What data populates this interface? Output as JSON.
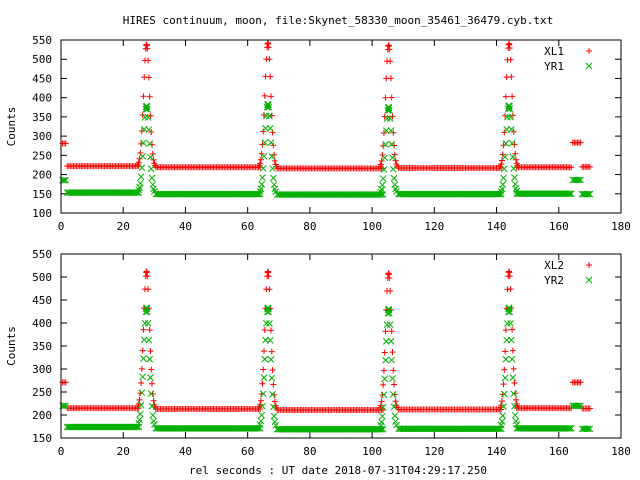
{
  "page": {
    "title": "HIRES continuum, moon, file:Skynet_58330_moon_35461_36479.cyb.txt",
    "xlabel": "rel seconds : UT date 2018-07-31T04:29:17.250"
  },
  "chart_data": [
    {
      "type": "scatter",
      "ylabel": "Counts",
      "xlim": [
        0,
        180
      ],
      "ylim": [
        100,
        550
      ],
      "xticks": [
        0,
        20,
        40,
        60,
        80,
        100,
        120,
        140,
        160,
        180
      ],
      "yticks": [
        100,
        150,
        200,
        250,
        300,
        350,
        400,
        450,
        500,
        550
      ],
      "legend_position": "top-right",
      "series": [
        {
          "name": "XL1",
          "color": "#ff0000",
          "marker": "plus",
          "baseline_segments": [
            [
              0.5,
              1.5,
              281
            ],
            [
              2,
              25,
              222
            ],
            [
              30.5,
              64,
              219
            ],
            [
              69.5,
              103.5,
              216
            ],
            [
              108.5,
              141.5,
              217
            ],
            [
              146.5,
              164,
              219
            ],
            [
              164.5,
              167,
              283
            ],
            [
              167.5,
              170,
              220
            ]
          ],
          "peaks": [
            {
              "x": 27.5,
              "y": 538
            },
            {
              "x": 66.5,
              "y": 542
            },
            {
              "x": 105.3,
              "y": 536
            },
            {
              "x": 144,
              "y": 540
            }
          ]
        },
        {
          "name": "YR1",
          "color": "#00b000",
          "marker": "cross",
          "baseline_segments": [
            [
              0.5,
              1.5,
              185
            ],
            [
              2,
              25,
              153
            ],
            [
              30.5,
              64,
              149
            ],
            [
              69.5,
              103.5,
              148
            ],
            [
              108.5,
              141.5,
              149
            ],
            [
              146.5,
              164,
              150
            ],
            [
              164.5,
              167,
              186
            ],
            [
              167.5,
              170,
              149
            ]
          ],
          "peaks": [
            {
              "x": 27.5,
              "y": 378
            },
            {
              "x": 66.5,
              "y": 383
            },
            {
              "x": 105.3,
              "y": 375
            },
            {
              "x": 144,
              "y": 379
            }
          ]
        }
      ]
    },
    {
      "type": "scatter",
      "ylabel": "Counts",
      "xlim": [
        0,
        180
      ],
      "ylim": [
        150,
        550
      ],
      "xticks": [
        0,
        20,
        40,
        60,
        80,
        100,
        120,
        140,
        160,
        180
      ],
      "yticks": [
        150,
        200,
        250,
        300,
        350,
        400,
        450,
        500,
        550
      ],
      "legend_position": "top-right",
      "series": [
        {
          "name": "XL2",
          "color": "#ff0000",
          "marker": "plus",
          "baseline_segments": [
            [
              0.5,
              1.5,
              271
            ],
            [
              2,
              25,
              215
            ],
            [
              30.5,
              64,
              213
            ],
            [
              69.5,
              103.5,
              211
            ],
            [
              108.5,
              141.5,
              212
            ],
            [
              146.5,
              164,
              215
            ],
            [
              164.5,
              167,
              271
            ],
            [
              167.5,
              170,
              214
            ]
          ],
          "peaks": [
            {
              "x": 27.5,
              "y": 512
            },
            {
              "x": 66.5,
              "y": 512
            },
            {
              "x": 105.3,
              "y": 508
            },
            {
              "x": 144,
              "y": 512
            }
          ]
        },
        {
          "name": "YR2",
          "color": "#00b000",
          "marker": "cross",
          "baseline_segments": [
            [
              0.5,
              1.5,
              220
            ],
            [
              2,
              25,
              174
            ],
            [
              30.5,
              64,
              171
            ],
            [
              69.5,
              103.5,
              169
            ],
            [
              108.5,
              141.5,
              170
            ],
            [
              146.5,
              164,
              171
            ],
            [
              164.5,
              167,
              220
            ],
            [
              167.5,
              170,
              170
            ]
          ],
          "peaks": [
            {
              "x": 27.5,
              "y": 433
            },
            {
              "x": 66.5,
              "y": 433
            },
            {
              "x": 105.3,
              "y": 430
            },
            {
              "x": 144,
              "y": 433
            }
          ]
        }
      ]
    }
  ]
}
